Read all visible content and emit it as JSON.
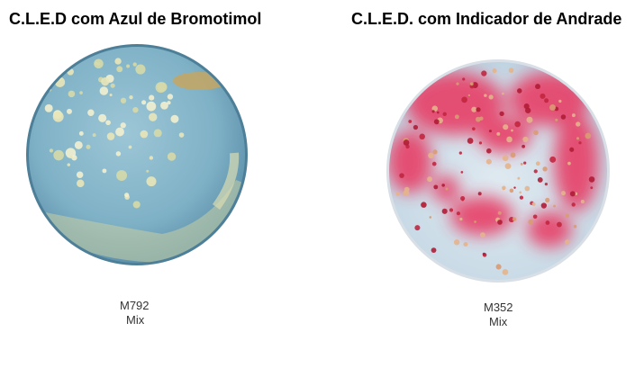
{
  "panels": [
    {
      "title": "C.L.E.D com Azul de Bromotimol",
      "code": "M792",
      "label": "Mix"
    },
    {
      "title": "C.L.E.D. com Indicador de Andrade",
      "code": "M352",
      "label": "Mix"
    }
  ]
}
